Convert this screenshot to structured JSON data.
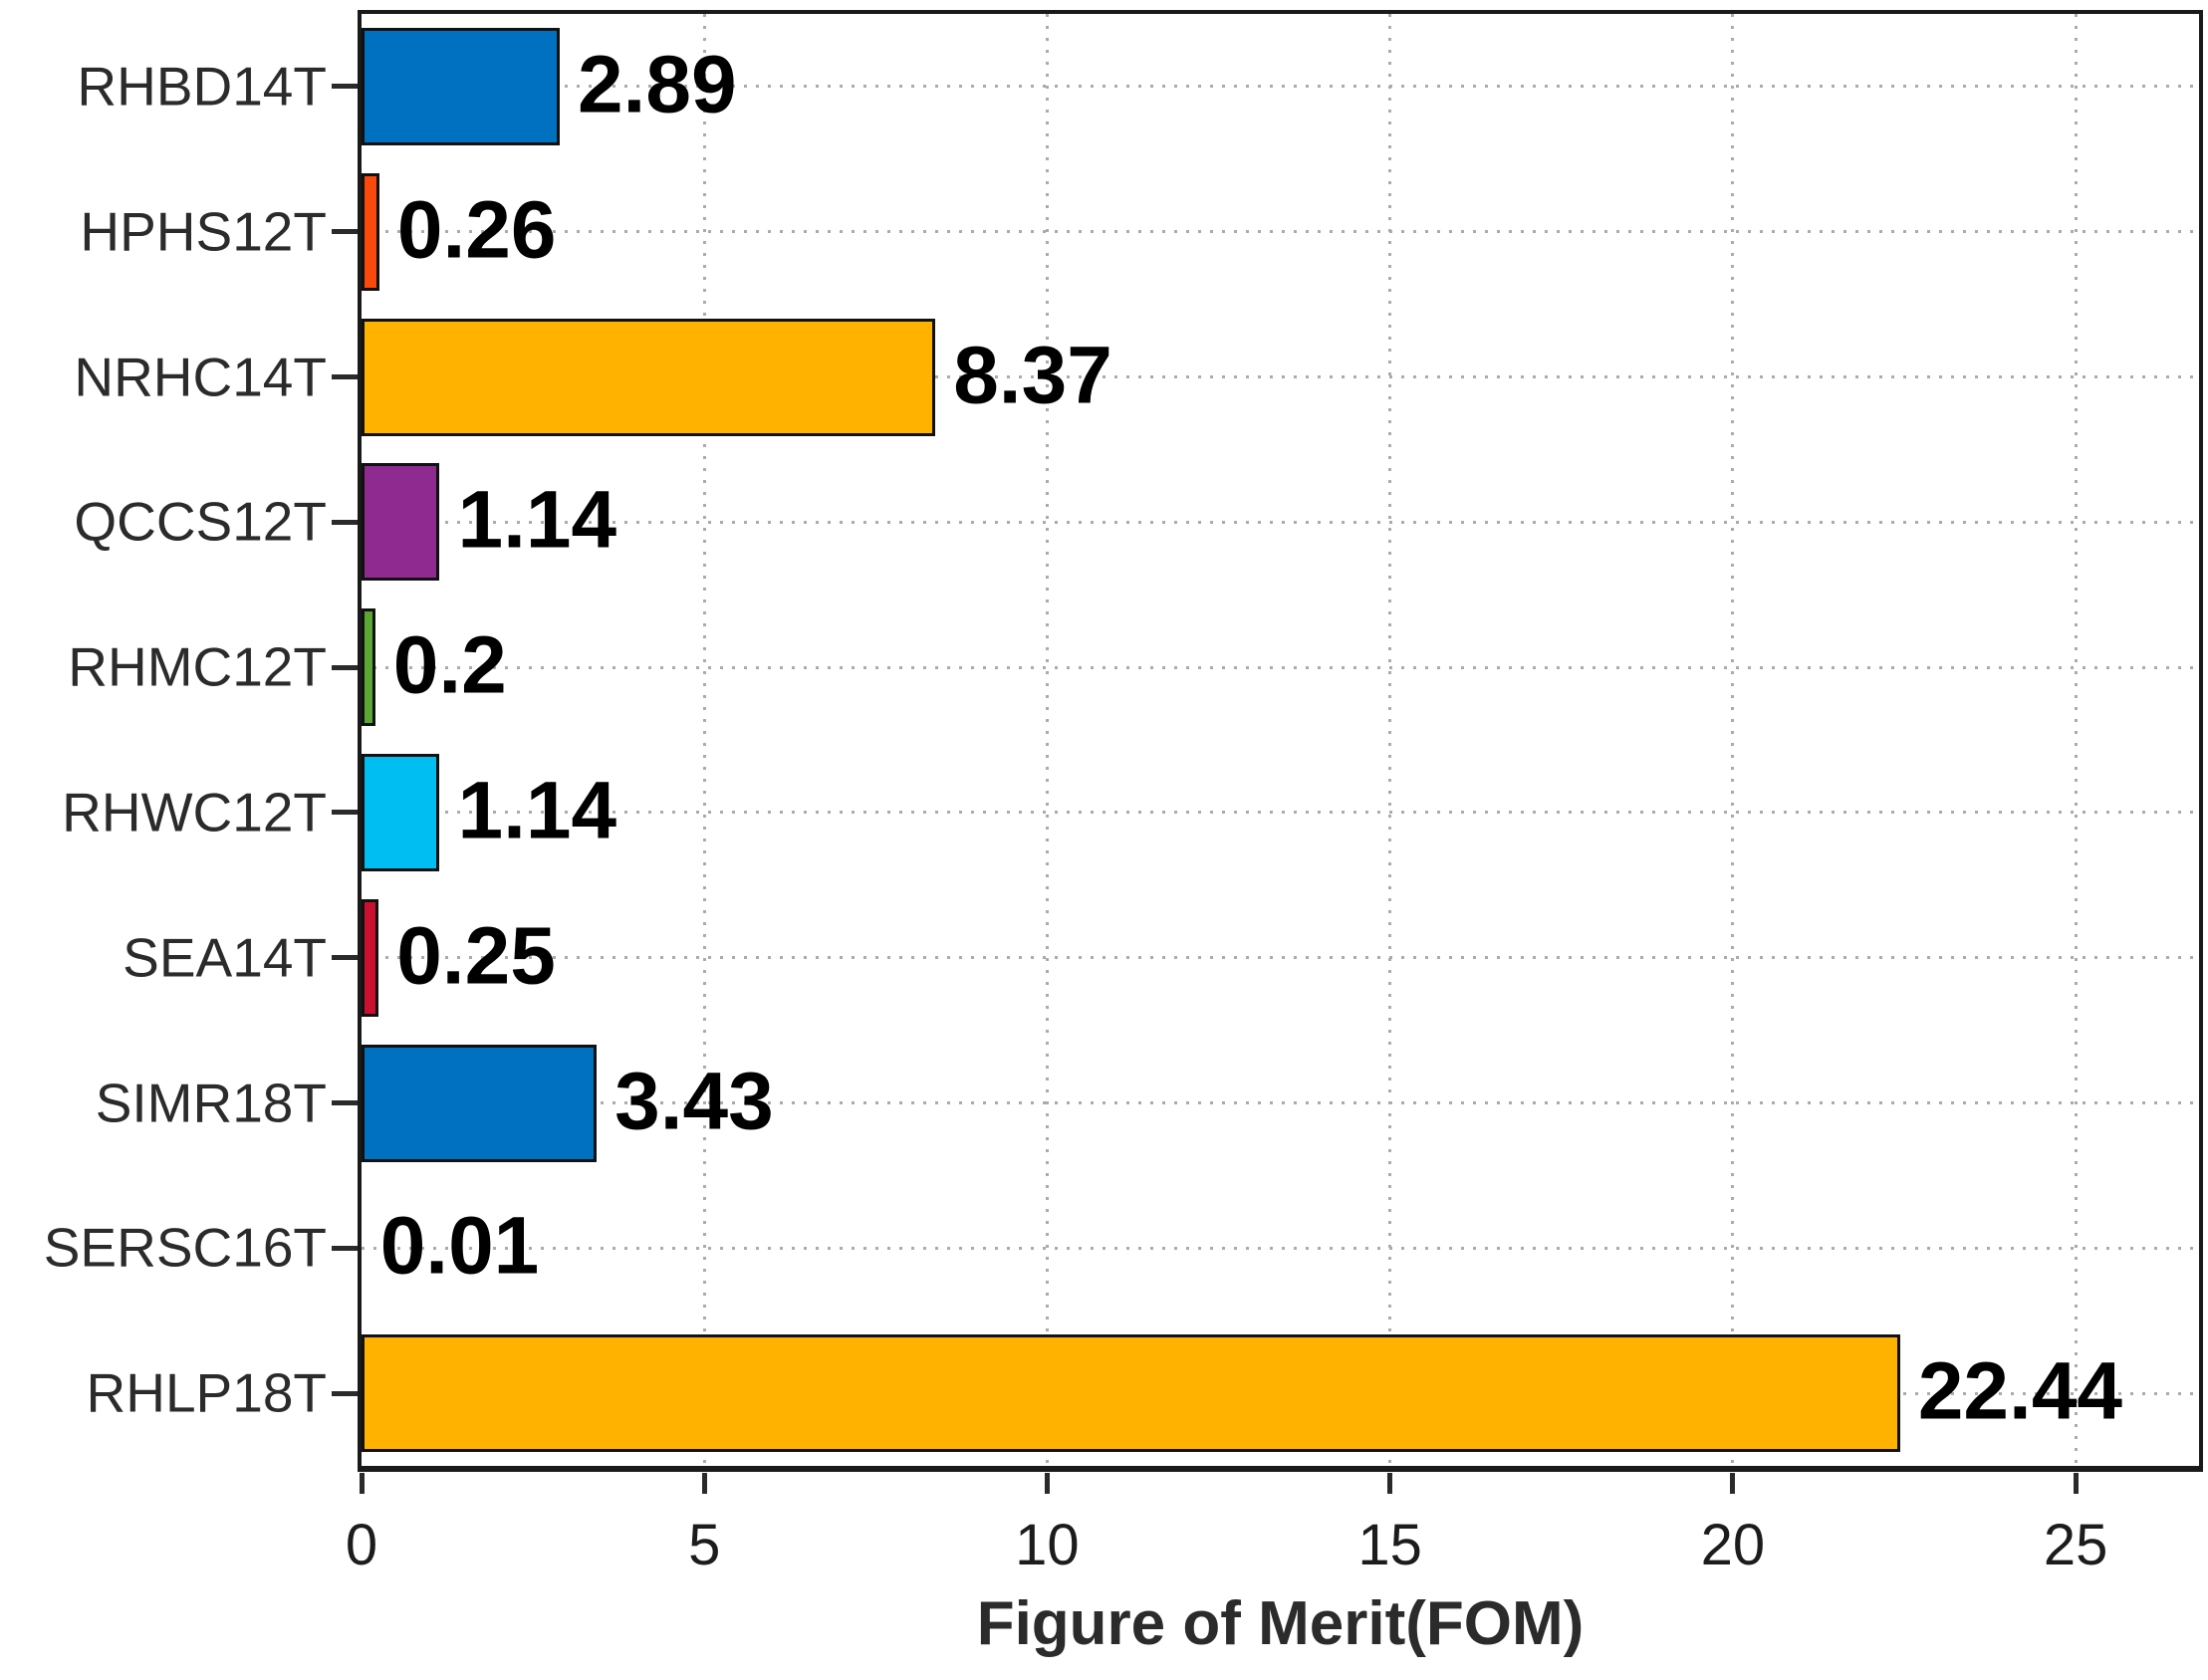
{
  "chart_data": {
    "type": "bar",
    "orientation": "horizontal",
    "title": "",
    "xlabel": "Figure of Merit(FOM)",
    "ylabel": "",
    "categories": [
      "RHBD14T",
      "HPHS12T",
      "NRHC14T",
      "QCCS12T",
      "RHMC12T",
      "RHWC12T",
      "SEA14T",
      "SIMR18T",
      "SERSC16T",
      "RHLP18T"
    ],
    "values": [
      2.89,
      0.26,
      8.37,
      1.14,
      0.2,
      1.14,
      0.25,
      3.43,
      0.01,
      22.44
    ],
    "value_labels": [
      "2.89",
      "0.26",
      "8.37",
      "1.14",
      "0.2",
      "1.14",
      "0.25",
      "3.43",
      "0.01",
      "22.44"
    ],
    "bar_colors": [
      "#0070C0",
      "#F9490B",
      "#FFB300",
      "#8E2A90",
      "#5BA733",
      "#00BDF2",
      "#C9102E",
      "#0070C0",
      null,
      "#FFB300"
    ],
    "x_ticks": [
      0,
      5,
      10,
      15,
      20,
      25
    ],
    "x_tick_labels": [
      "0",
      "5",
      "10",
      "15",
      "20",
      "25"
    ],
    "xlim": [
      0,
      26.8
    ],
    "grid": true,
    "grid_style": "dotted",
    "grid_color": "#ababab",
    "bar_edge_color": "#111111",
    "legend": null
  }
}
